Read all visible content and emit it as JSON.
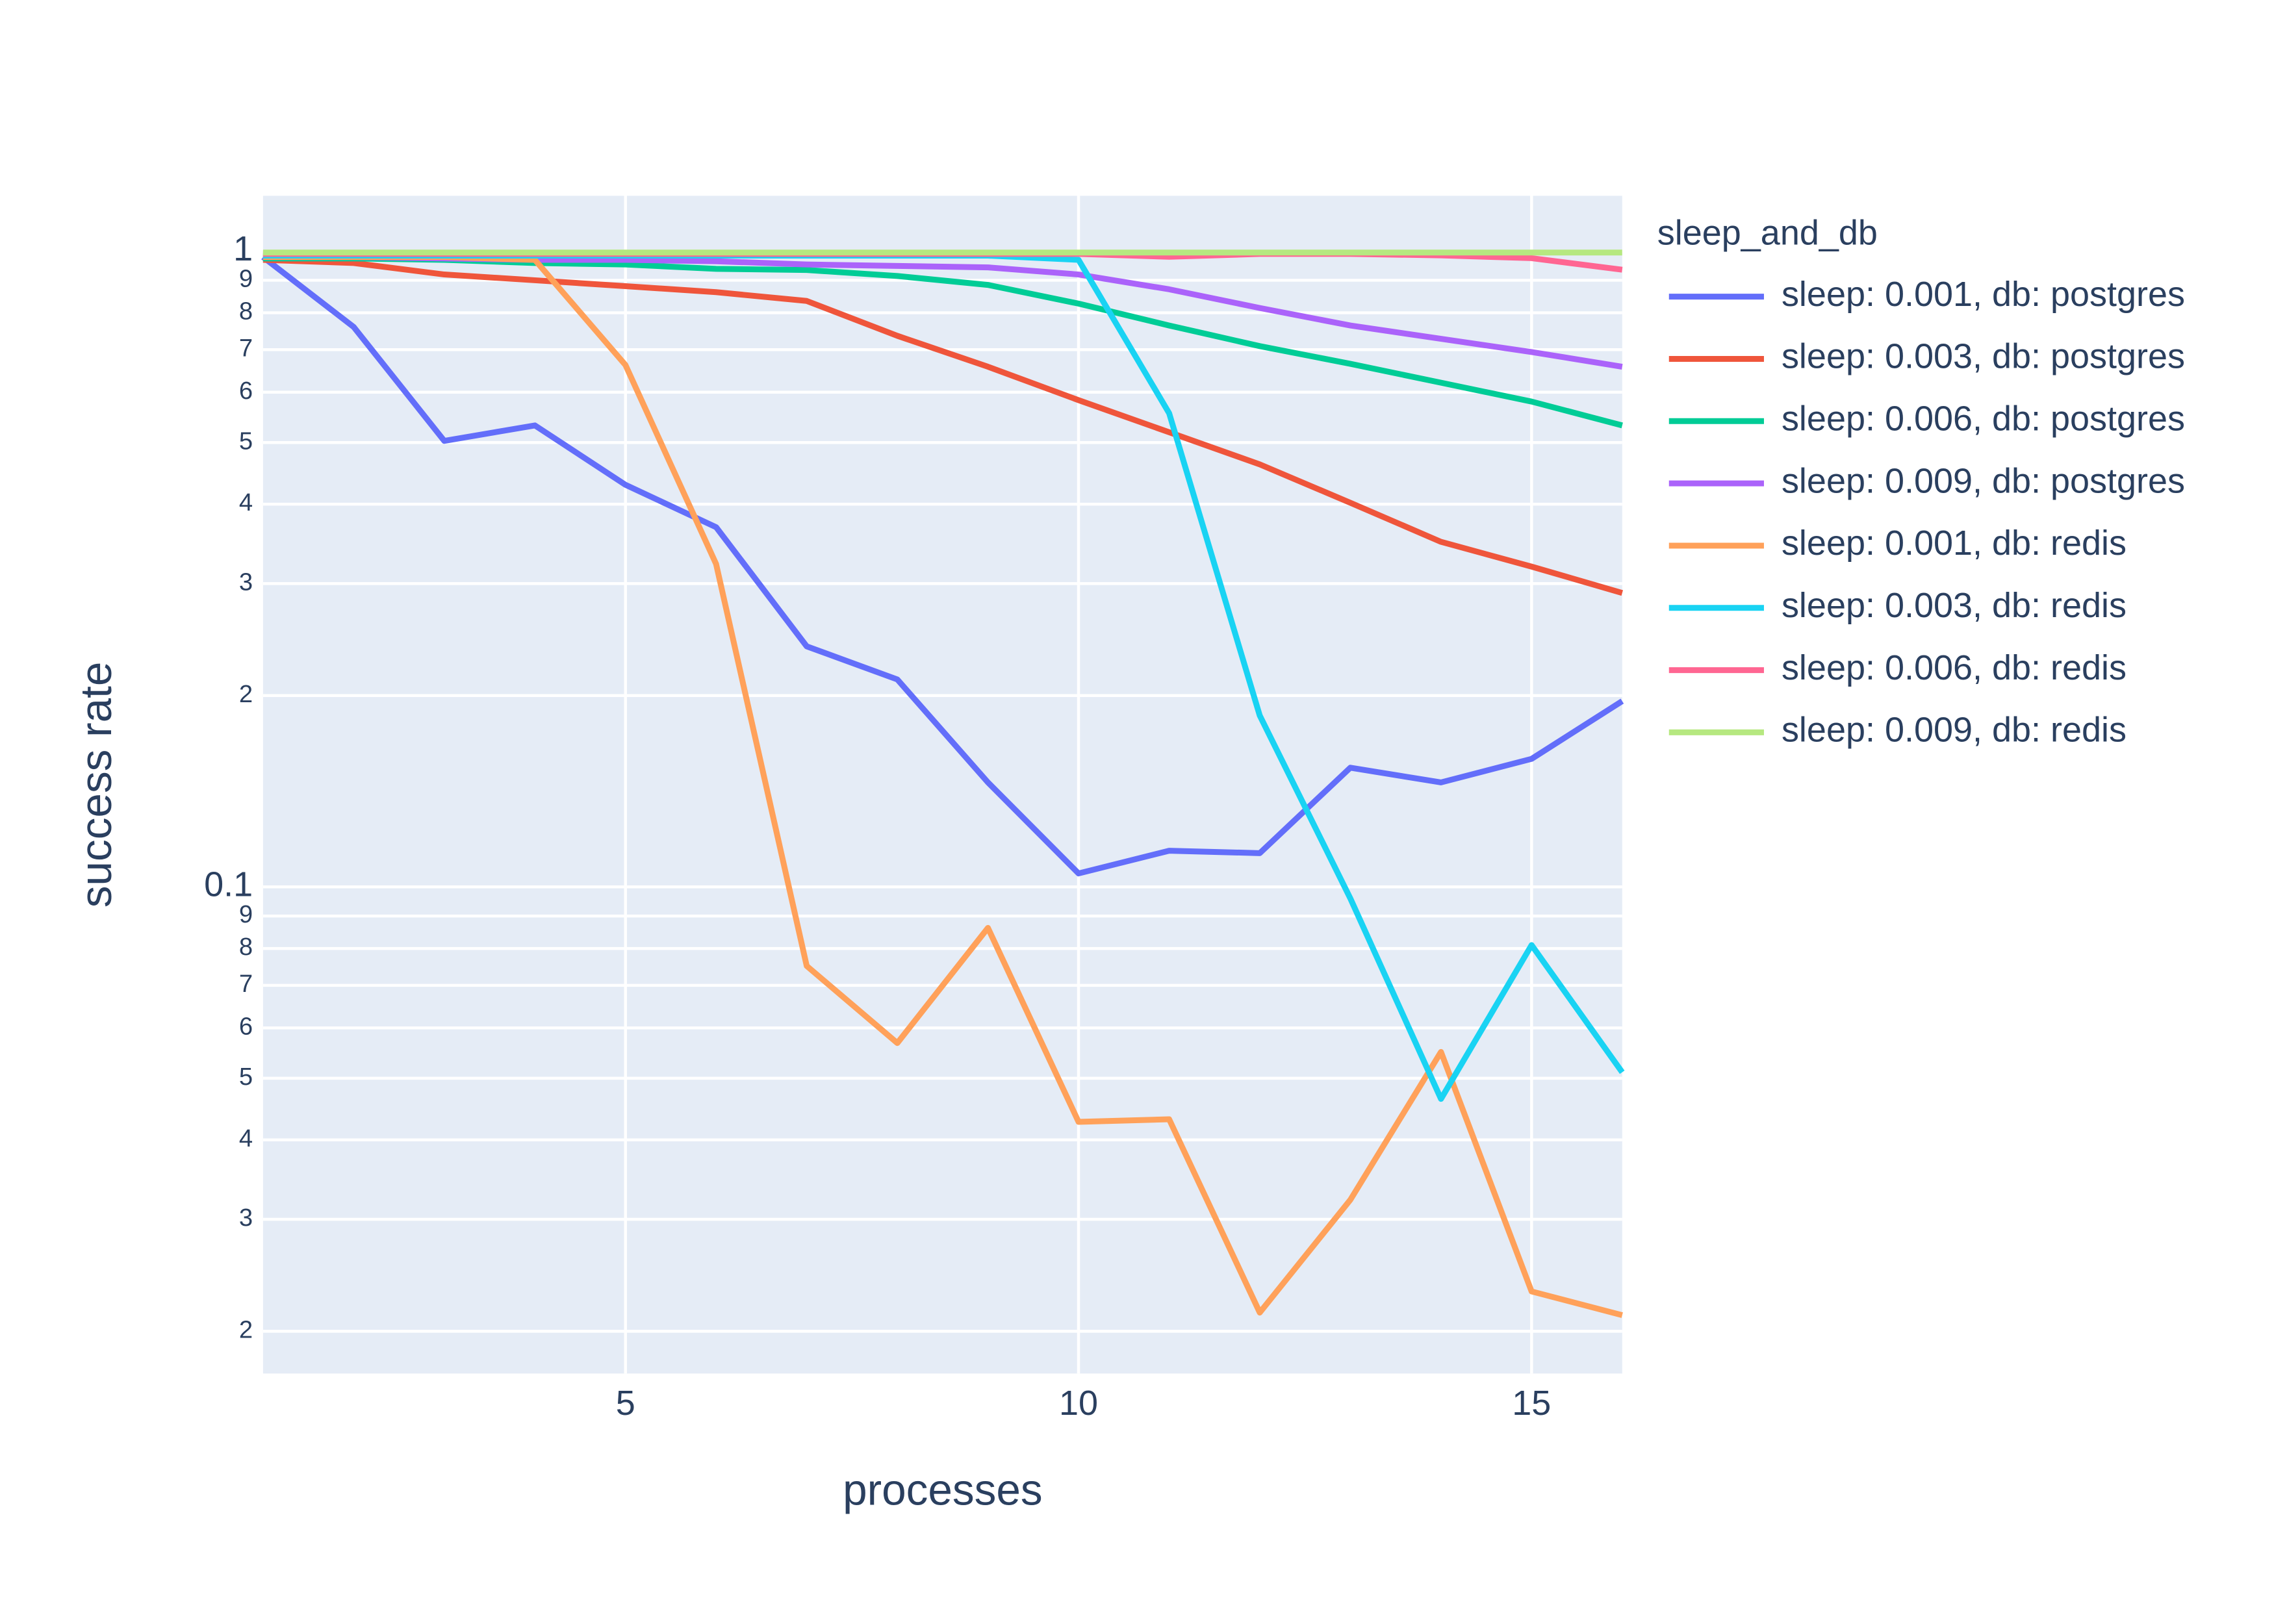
{
  "chart_data": {
    "type": "line",
    "x_label": "processes",
    "y_label": "success rate",
    "legend_title": "sleep_and_db",
    "y_log": true,
    "grid": true,
    "legend_position": "right",
    "x": [
      1,
      2,
      3,
      4,
      5,
      6,
      7,
      8,
      9,
      10,
      11,
      12,
      13,
      14,
      15,
      16
    ],
    "xlim": [
      1,
      16
    ],
    "xticks": [
      5,
      10,
      15
    ],
    "ylim": [
      0.01716,
      1.222
    ],
    "yticks": [
      1,
      {
        "value": 0.9,
        "label": "9"
      },
      {
        "value": 0.8,
        "label": "8"
      },
      {
        "value": 0.7,
        "label": "7"
      },
      {
        "value": 0.6,
        "label": "6"
      },
      {
        "value": 0.5,
        "label": "5"
      },
      {
        "value": 0.4,
        "label": "4"
      },
      {
        "value": 0.3,
        "label": "3"
      },
      {
        "value": 0.2,
        "label": "2"
      },
      0.1,
      {
        "value": 0.09,
        "label": "9"
      },
      {
        "value": 0.08,
        "label": "8"
      },
      {
        "value": 0.07,
        "label": "7"
      },
      {
        "value": 0.06,
        "label": "6"
      },
      {
        "value": 0.05,
        "label": "5"
      },
      {
        "value": 0.04,
        "label": "4"
      },
      {
        "value": 0.03,
        "label": "3"
      },
      {
        "value": 0.02,
        "label": "2"
      }
    ],
    "series": [
      {
        "name": "sleep: 0.001, db: postgres",
        "color": "#636efa",
        "values": [
          0.979,
          0.76,
          0.503,
          0.532,
          0.429,
          0.368,
          0.239,
          0.212,
          0.146,
          0.105,
          0.114,
          0.113,
          0.154,
          0.146,
          0.159,
          0.196
        ]
      },
      {
        "name": "sleep: 0.003, db: postgres",
        "color": "#ef553b",
        "values": [
          0.969,
          0.958,
          0.919,
          0.9,
          0.881,
          0.862,
          0.835,
          0.736,
          0.658,
          0.583,
          0.519,
          0.462,
          0.402,
          0.349,
          0.319,
          0.29
        ]
      },
      {
        "name": "sleep: 0.006, db: postgres",
        "color": "#00cc96",
        "values": [
          0.974,
          0.974,
          0.969,
          0.958,
          0.953,
          0.938,
          0.934,
          0.914,
          0.885,
          0.827,
          0.764,
          0.709,
          0.665,
          0.621,
          0.58,
          0.532
        ]
      },
      {
        "name": "sleep: 0.009, db: postgres",
        "color": "#ab63fa",
        "values": [
          0.979,
          0.979,
          0.974,
          0.969,
          0.969,
          0.964,
          0.953,
          0.948,
          0.943,
          0.919,
          0.871,
          0.814,
          0.764,
          0.728,
          0.694,
          0.658
        ]
      },
      {
        "name": "sleep: 0.001, db: redis",
        "color": "#ffa15a",
        "values": [
          0.979,
          0.979,
          0.979,
          0.969,
          0.662,
          0.322,
          0.0751,
          0.0568,
          0.0862,
          0.0427,
          0.0431,
          0.0214,
          0.0322,
          0.055,
          0.0231,
          0.0212
        ]
      },
      {
        "name": "sleep: 0.003, db: redis",
        "color": "#19d3f3",
        "values": [
          0.984,
          0.984,
          0.984,
          0.984,
          0.984,
          0.984,
          0.984,
          0.984,
          0.984,
          0.969,
          0.556,
          0.186,
          0.0959,
          0.0464,
          0.081,
          0.0511
        ]
      },
      {
        "name": "sleep: 0.006, db: redis",
        "color": "#ff6692",
        "values": [
          0.99,
          0.99,
          0.99,
          0.99,
          0.99,
          0.99,
          0.99,
          0.99,
          0.99,
          0.99,
          0.98,
          0.99,
          0.99,
          0.985,
          0.975,
          0.935
        ]
      },
      {
        "name": "sleep: 0.009, db: redis",
        "color": "#b6e880",
        "values": [
          0.995,
          0.995,
          0.995,
          0.995,
          0.995,
          0.995,
          0.995,
          0.995,
          0.995,
          0.995,
          0.995,
          0.995,
          0.995,
          0.995,
          0.995,
          0.995
        ]
      }
    ]
  }
}
